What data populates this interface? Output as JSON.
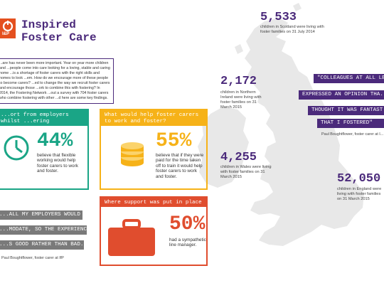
{
  "header": {
    "logo_text": "I&P",
    "title": "Inspired\nFoster Care"
  },
  "intro": {
    "text": "...are has never been more important. Year on year more children and ...people come into care looking for a loving, stable and caring home ...is a shortage of foster carers with the right skills and homes to look ...em. How do we encourage more of these people to become carers? ...ed to change the way we recruit foster carers and encourage those ...ork to combine this with fostering? In 2014, the Fostering Network ...out a survey with 704 foster carers who combine fostering with other ...d here are some key findings."
  },
  "panel_employers": {
    "heading": "...ort from employers whilst ...ering",
    "percent": "44%",
    "text": "believe that flexible working would help foster carers to work and foster.",
    "icon": "clock-icon",
    "color": "#1aa586"
  },
  "panel_help": {
    "heading": "What would help foster carers to work and foster?",
    "percent": "55%",
    "text": "believe that if they were paid for the time taken off to train it would help foster carers to work and foster.",
    "icon": "coins-icon",
    "color": "#f6b218"
  },
  "panel_support": {
    "heading": "Where support was put in place",
    "percent": "50%",
    "text": "had a sympathetic line manager.",
    "icon": "briefcase-icon",
    "color": "#e04d2e"
  },
  "quote_left": {
    "lines": [
      "...ALL MY EMPLOYERS WOULD",
      "...MODATE, SO THE EXPERIENCE",
      "...S GOOD RATHER THAN BAD.\""
    ],
    "attribution": "Paul Boughtflower, foster carer at IfP"
  },
  "quote_right": {
    "lines": [
      "\"COLLEAGUES AT ALL LE...",
      "EXPRESSED AN OPINION THA...",
      "THOUGHT IT WAS FANTAST...",
      "THAT I FOSTERED\""
    ],
    "attribution": "Paul Boughtflower, foster carer at I..."
  },
  "stats": [
    {
      "number": "5,533",
      "text": "children in Scotland were living with foster families on 31 July 2014"
    },
    {
      "number": "2,172",
      "text": "children in Northern Ireland were living with foster families on 31 March 2015"
    },
    {
      "number": "4,255",
      "text": "children in Wales were living with foster families on 31 March 2015"
    },
    {
      "number": "52,050",
      "text": "children in England were living with foster families on 31 March 2015"
    }
  ],
  "colors": {
    "purple": "#4b2a7b",
    "green": "#1aa586",
    "yellow": "#f6b218",
    "red": "#e04d2e",
    "map": "#e8e8e8"
  }
}
